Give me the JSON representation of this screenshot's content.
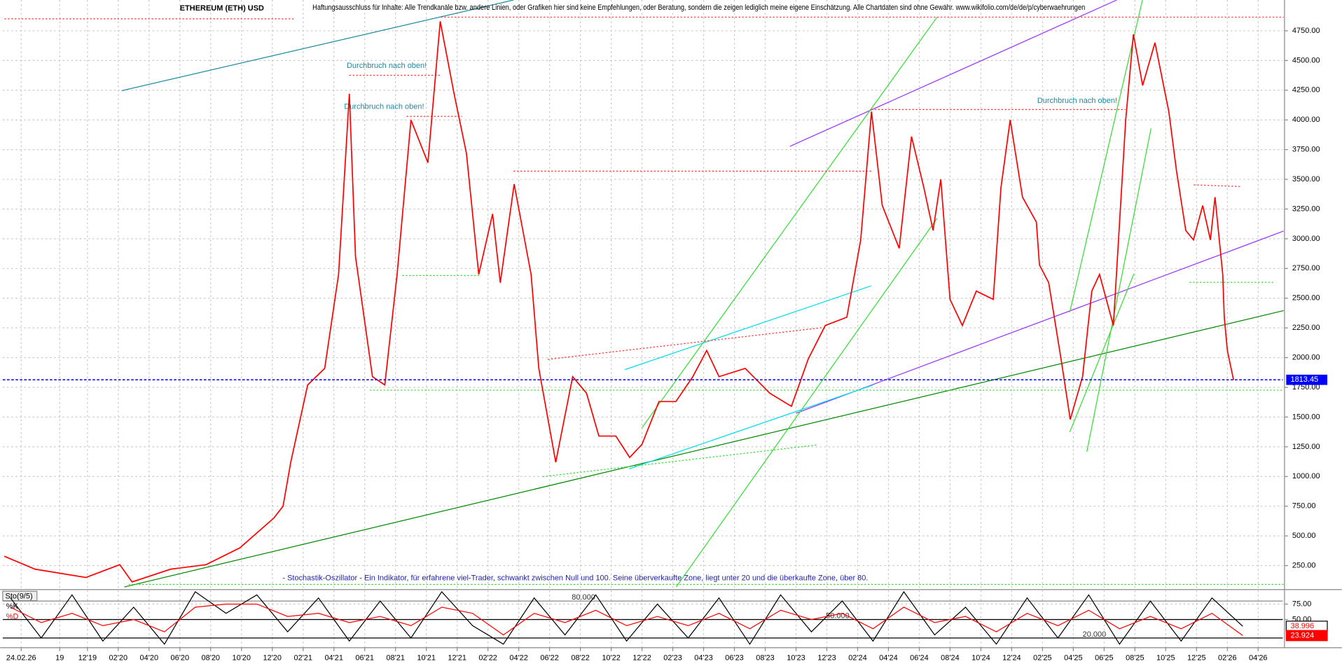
{
  "chart_data": [
    {
      "type": "line",
      "title": "ETHEREUM (ETH) USD",
      "subtitle": "Haftungsausschluss für Inhalte: Alle Trendkanäle bzw. andere Linien, oder Grafiken hier sind keine Empfehlungen, oder Beratung, sondern die zeigen lediglich meine eigene Einschätzung. Alle Chartdaten sind ohne Gewähr. www.wikifolio.com/de/de/p/cyberwaehrungen",
      "annotations": [
        "Durchbruch nach oben!",
        "Durchbruch nach oben!",
        "Durchbruch nach oben!",
        "- Stochastik-Oszillator - Ein Indikator, für erfahrene viel-Trader, schwankt zwischen Null und 100. Seine überverkaufte Zone, liegt unter 20 und die überkaufte Zone, über 80."
      ],
      "x": [
        5.6,
        7.6,
        10.9,
        13.1,
        13.9,
        16.4,
        18.7,
        20.9,
        23.1,
        23.7,
        24.2,
        25.3,
        26.4,
        27.3,
        28,
        28.4,
        29.5,
        30.3,
        31.1,
        32,
        33.1,
        33.9,
        34.8,
        35.6,
        36.4,
        37.3,
        37.8,
        38.7,
        39.8,
        40.3,
        41.4,
        42.5,
        43.4,
        44.2,
        45.3,
        46.2,
        47,
        48.1,
        49.2,
        50.3,
        51.2,
        52,
        53.7,
        55.3,
        56.7,
        57.8,
        58.9,
        60.3,
        61.2,
        61.9,
        62.6,
        63.7,
        64.5,
        65.3,
        65.9,
        66.4,
        67,
        67.8,
        68.7,
        69.8,
        70.3,
        70.9,
        71.7,
        72.6,
        72.8,
        73.4,
        74.2,
        74.8,
        75.6,
        76.2,
        76.7,
        77.6,
        78.4,
        78.9,
        79.5,
        80.3,
        81.2,
        81.7,
        82.3,
        82.8,
        83.4,
        83.9,
        84.2,
        84.7,
        84.8,
        85,
        85.4
      ],
      "series": [
        {
          "color": "#ff0000",
          "values": [
            329,
            220,
            150,
            258,
            113,
            220,
            258,
            400,
            650,
            750,
            1120,
            1770,
            1910,
            2700,
            4220,
            2850,
            1840,
            1770,
            2700,
            4000,
            3640,
            4830,
            4220,
            3720,
            2700,
            3210,
            2630,
            3460,
            2700,
            1910,
            1120,
            1840,
            1700,
            1340,
            1340,
            1160,
            1270,
            1630,
            1630,
            1840,
            2060,
            1840,
            1910,
            1700,
            1590,
            1990,
            2270,
            2340,
            2990,
            4070,
            3280,
            2920,
            3860,
            3430,
            3070,
            3500,
            2490,
            2270,
            2560,
            2490,
            3430,
            4000,
            3350,
            3140,
            2780,
            2630,
            1990,
            1480,
            1840,
            2560,
            2700,
            2270,
            4000,
            4720,
            4290,
            4650,
            4070,
            3570,
            3070,
            2990,
            3280,
            2990,
            3350,
            2700,
            2340,
            2060,
            1813.45
          ]
        }
      ],
      "last_value": 1813.45,
      "last_value_color": "#0000ff",
      "xlim": [
        5.5,
        88.6
      ],
      "ylim": [
        63,
        5009
      ],
      "yticks": [
        {
          "value": 250,
          "label": "250.00"
        },
        {
          "value": 500,
          "label": "500.00"
        },
        {
          "value": 750,
          "label": "750.00"
        },
        {
          "value": 1000,
          "label": "1000.00"
        },
        {
          "value": 1250,
          "label": "1250.00"
        },
        {
          "value": 1500,
          "label": "1500.00"
        },
        {
          "value": 1750,
          "label": "1750.00"
        },
        {
          "value": 2000,
          "label": "2000.00"
        },
        {
          "value": 2250,
          "label": "2250.00"
        },
        {
          "value": 2500,
          "label": "2500.00"
        },
        {
          "value": 2750,
          "label": "2750.00"
        },
        {
          "value": 3000,
          "label": "3000.00"
        },
        {
          "value": 3250,
          "label": "3250.00"
        },
        {
          "value": 3500,
          "label": "3500.00"
        },
        {
          "value": 3750,
          "label": "3750.00"
        },
        {
          "value": 4000,
          "label": "4000.00"
        },
        {
          "value": 4250,
          "label": "4250.00"
        },
        {
          "value": 4500,
          "label": "4500.00"
        },
        {
          "value": 4750,
          "label": "4750.00"
        }
      ],
      "grid": true
    },
    {
      "type": "line",
      "title": "Sto(9/5)",
      "x": [
        6,
        8,
        10,
        12,
        14,
        16,
        18,
        20,
        22,
        24,
        26,
        28,
        30,
        32,
        34,
        36,
        38,
        40,
        42,
        44,
        46,
        48,
        50,
        52,
        54,
        56,
        58,
        60,
        62,
        64,
        66,
        68,
        70,
        72,
        74,
        76,
        78,
        80,
        82,
        84,
        86
      ],
      "series": [
        {
          "name": "%K",
          "color": "#000000",
          "values": [
            85,
            20,
            90,
            15,
            70,
            10,
            95,
            60,
            90,
            30,
            85,
            15,
            80,
            20,
            95,
            40,
            10,
            85,
            25,
            90,
            15,
            75,
            20,
            85,
            10,
            90,
            30,
            80,
            15,
            95,
            25,
            70,
            10,
            85,
            20,
            90,
            10,
            80,
            15,
            85,
            39
          ]
        },
        {
          "name": "%D",
          "color": "#ff0000",
          "values": [
            70,
            45,
            60,
            40,
            50,
            30,
            70,
            75,
            75,
            55,
            60,
            45,
            55,
            40,
            70,
            60,
            25,
            60,
            45,
            65,
            40,
            55,
            40,
            60,
            35,
            65,
            50,
            60,
            35,
            70,
            45,
            55,
            30,
            60,
            40,
            65,
            35,
            55,
            35,
            60,
            24
          ]
        }
      ],
      "last_values": [
        38.996,
        23.924
      ],
      "levels": [
        {
          "value": 80,
          "label": "80.000"
        },
        {
          "value": 50,
          "label": "50.000"
        },
        {
          "value": 20,
          "label": "20.000"
        }
      ],
      "xlim": [
        5.5,
        88.6
      ],
      "ylim": [
        0,
        100
      ],
      "yticks": [
        {
          "value": 75,
          "label": "75.00"
        },
        {
          "value": 50,
          "label": "50.00"
        }
      ],
      "xticks": [
        {
          "value": 6.7,
          "label": "24.02.26"
        },
        {
          "value": 9.2,
          "label": "19"
        },
        {
          "value": 11,
          "label": "12'19"
        },
        {
          "value": 13,
          "label": "02'20"
        },
        {
          "value": 15,
          "label": "04'20"
        },
        {
          "value": 17,
          "label": "06'20"
        },
        {
          "value": 19,
          "label": "08'20"
        },
        {
          "value": 21,
          "label": "10'20"
        },
        {
          "value": 23,
          "label": "12'20"
        },
        {
          "value": 25,
          "label": "02'21"
        },
        {
          "value": 27,
          "label": "04'21"
        },
        {
          "value": 29,
          "label": "06'21"
        },
        {
          "value": 31,
          "label": "08'21"
        },
        {
          "value": 33,
          "label": "10'21"
        },
        {
          "value": 35,
          "label": "12'21"
        },
        {
          "value": 37,
          "label": "02'22"
        },
        {
          "value": 39,
          "label": "04'22"
        },
        {
          "value": 41,
          "label": "06'22"
        },
        {
          "value": 43,
          "label": "08'22"
        },
        {
          "value": 45,
          "label": "10'22"
        },
        {
          "value": 47,
          "label": "12'22"
        },
        {
          "value": 49,
          "label": "02'23"
        },
        {
          "value": 51,
          "label": "04'23"
        },
        {
          "value": 53,
          "label": "06'23"
        },
        {
          "value": 55,
          "label": "08'23"
        },
        {
          "value": 57,
          "label": "10'23"
        },
        {
          "value": 59,
          "label": "12'23"
        },
        {
          "value": 61,
          "label": "02'24"
        },
        {
          "value": 63,
          "label": "04'24"
        },
        {
          "value": 65,
          "label": "06'24"
        },
        {
          "value": 67,
          "label": "08'24"
        },
        {
          "value": 69,
          "label": "10'24"
        },
        {
          "value": 71,
          "label": "12'24"
        },
        {
          "value": 73,
          "label": "02'25"
        },
        {
          "value": 75,
          "label": "04'25"
        },
        {
          "value": 77,
          "label": "06'25"
        },
        {
          "value": 79,
          "label": "08'25"
        },
        {
          "value": 81,
          "label": "10'25"
        },
        {
          "value": 83,
          "label": "12'25"
        },
        {
          "value": 85,
          "label": "02'26"
        },
        {
          "value": 87,
          "label": "04'26"
        }
      ],
      "grid": true
    }
  ]
}
